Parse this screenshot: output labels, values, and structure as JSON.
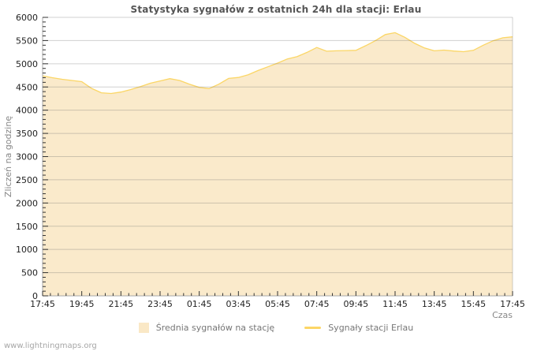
{
  "page": {
    "watermark": "www.lightningmaps.org"
  },
  "colors": {
    "background": "#ffffff",
    "area_fill": "#faeacb",
    "line": "#fbd666",
    "grid": "rgba(110,110,110,0.32)",
    "axis": "#a8a8a8",
    "tick": "#333333",
    "tick_label": "#222222",
    "axis_name": "#888888",
    "title": "#555555"
  },
  "chart_data": {
    "type": "area",
    "title": "Statystyka sygnałów z ostatnich 24h dla stacji: Erlau",
    "xlabel": "Czas",
    "ylabel": "Zliczeń na godzinę",
    "ylim": [
      0,
      6000
    ],
    "y_tick_step": 500,
    "y_minor_step": 100,
    "x_ticks": [
      "17:45",
      "19:45",
      "21:45",
      "23:45",
      "01:45",
      "03:45",
      "05:45",
      "07:45",
      "09:45",
      "11:45",
      "13:45",
      "15:45",
      "17:45"
    ],
    "x_minor_per_major": 5,
    "grid": true,
    "legend_position": "bottom-center",
    "sample_interval_minutes": 30,
    "series": [
      {
        "name": "Średnia sygnałów na stację",
        "type": "area",
        "color": "#faeacb",
        "legend_swatch_color": "#fae8c6",
        "values": [
          4740,
          4700,
          4665,
          4640,
          4615,
          4470,
          4375,
          4360,
          4390,
          4445,
          4510,
          4580,
          4630,
          4680,
          4640,
          4560,
          4490,
          4465,
          4560,
          4685,
          4705,
          4765,
          4855,
          4935,
          5015,
          5105,
          5155,
          5245,
          5350,
          5270,
          5280,
          5285,
          5290,
          5390,
          5500,
          5630,
          5670,
          5570,
          5440,
          5340,
          5280,
          5295,
          5275,
          5260,
          5290,
          5400,
          5495,
          5560,
          5580
        ]
      },
      {
        "name": "Sygnały stacji Erlau",
        "type": "line",
        "color": "#fbd666",
        "legend_swatch_color": "#fcd666",
        "values": [
          4740,
          4700,
          4665,
          4640,
          4615,
          4470,
          4375,
          4360,
          4390,
          4445,
          4510,
          4580,
          4630,
          4680,
          4640,
          4560,
          4490,
          4465,
          4560,
          4685,
          4705,
          4765,
          4855,
          4935,
          5015,
          5105,
          5155,
          5245,
          5350,
          5270,
          5280,
          5285,
          5290,
          5390,
          5500,
          5630,
          5670,
          5570,
          5440,
          5340,
          5280,
          5295,
          5275,
          5260,
          5290,
          5400,
          5495,
          5560,
          5580
        ]
      }
    ]
  }
}
